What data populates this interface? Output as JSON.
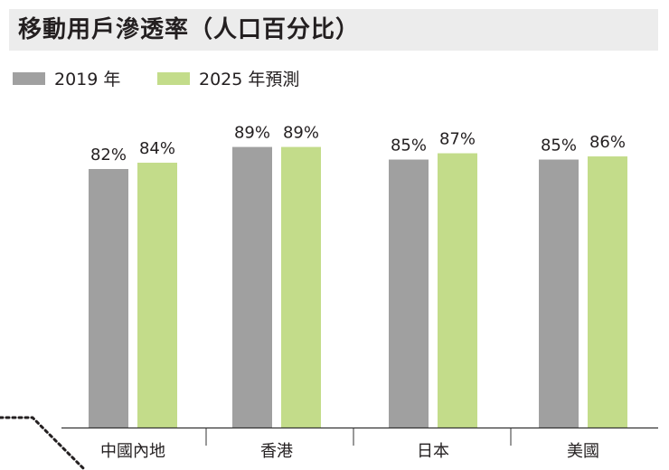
{
  "chart_data": {
    "type": "bar",
    "title": "移動用戶滲透率（人口百分比）",
    "categories": [
      "中國內地",
      "香港",
      "日本",
      "美國"
    ],
    "series": [
      {
        "name": "2019 年",
        "values": [
          82,
          89,
          85,
          85
        ],
        "labels": [
          "82%",
          "89%",
          "85%",
          "85%"
        ],
        "color": "#a0a0a0"
      },
      {
        "name": "2025 年預測",
        "values": [
          84,
          89,
          87,
          86
        ],
        "labels": [
          "84%",
          "89%",
          "87%",
          "86%"
        ],
        "color": "#c3dc8a"
      }
    ],
    "grid": false,
    "legend_position": "top-left"
  },
  "colors": {
    "title_band": "#ececec",
    "axis": "#333333",
    "connector": "#231f20"
  }
}
